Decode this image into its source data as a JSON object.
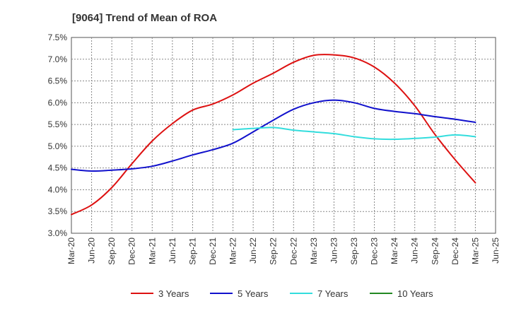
{
  "chart_data": {
    "type": "line",
    "title": "[9064]  Trend of Mean of ROA",
    "xlabel": "",
    "ylabel": "",
    "grid": true,
    "legend_position": "bottom",
    "ylim": [
      3.0,
      7.5
    ],
    "y_ticks": [
      "3.0%",
      "3.5%",
      "4.0%",
      "4.5%",
      "5.0%",
      "5.5%",
      "6.0%",
      "6.5%",
      "7.0%",
      "7.5%"
    ],
    "x": [
      "Mar-20",
      "Jun-20",
      "Sep-20",
      "Dec-20",
      "Mar-21",
      "Jun-21",
      "Sep-21",
      "Dec-21",
      "Mar-22",
      "Jun-22",
      "Sep-22",
      "Dec-22",
      "Mar-23",
      "Jun-23",
      "Sep-23",
      "Dec-23",
      "Mar-24",
      "Jun-24",
      "Sep-24",
      "Dec-24",
      "Mar-25",
      "Jun-25"
    ],
    "series": [
      {
        "name": "3 Years",
        "color": "#dd1111",
        "values": [
          3.43,
          3.65,
          4.05,
          4.6,
          5.12,
          5.52,
          5.83,
          5.97,
          6.18,
          6.45,
          6.68,
          6.93,
          7.09,
          7.1,
          7.03,
          6.82,
          6.45,
          5.93,
          5.27,
          4.69,
          4.16,
          null
        ]
      },
      {
        "name": "5 Years",
        "color": "#1111cc",
        "values": [
          4.47,
          4.43,
          4.45,
          4.48,
          4.54,
          4.66,
          4.8,
          4.92,
          5.07,
          5.33,
          5.6,
          5.85,
          6.0,
          6.06,
          6.0,
          5.87,
          5.8,
          5.75,
          5.68,
          5.62,
          5.55,
          null
        ]
      },
      {
        "name": "7 Years",
        "color": "#33dddd",
        "values": [
          null,
          null,
          null,
          null,
          null,
          null,
          null,
          null,
          5.38,
          5.41,
          5.43,
          5.37,
          5.33,
          5.29,
          5.22,
          5.17,
          5.16,
          5.18,
          5.21,
          5.26,
          5.22,
          null
        ]
      },
      {
        "name": "10 Years",
        "color": "#228822",
        "values": [
          null,
          null,
          null,
          null,
          null,
          null,
          null,
          null,
          null,
          null,
          null,
          null,
          null,
          null,
          null,
          null,
          null,
          null,
          null,
          null,
          null,
          null
        ]
      }
    ]
  }
}
